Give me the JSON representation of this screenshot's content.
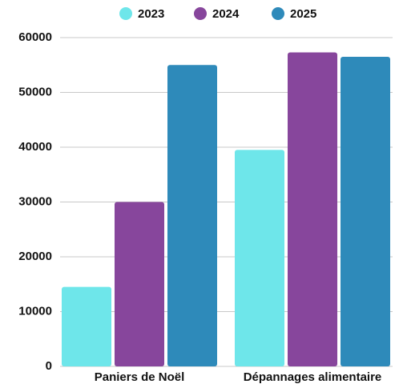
{
  "chart_data": {
    "type": "bar",
    "categories": [
      "Paniers de Noël",
      "Dépannages alimentaire"
    ],
    "series": [
      {
        "name": "2023",
        "color": "#6ee6ea",
        "values": [
          14500,
          39500
        ]
      },
      {
        "name": "2024",
        "color": "#87469c",
        "values": [
          30000,
          57300
        ]
      },
      {
        "name": "2025",
        "color": "#2e8aba",
        "values": [
          55000,
          56500
        ]
      }
    ],
    "ylim": [
      0,
      60000
    ],
    "yticks": [
      0,
      10000,
      20000,
      30000,
      40000,
      50000,
      60000
    ],
    "grid": true,
    "legend": "top"
  }
}
